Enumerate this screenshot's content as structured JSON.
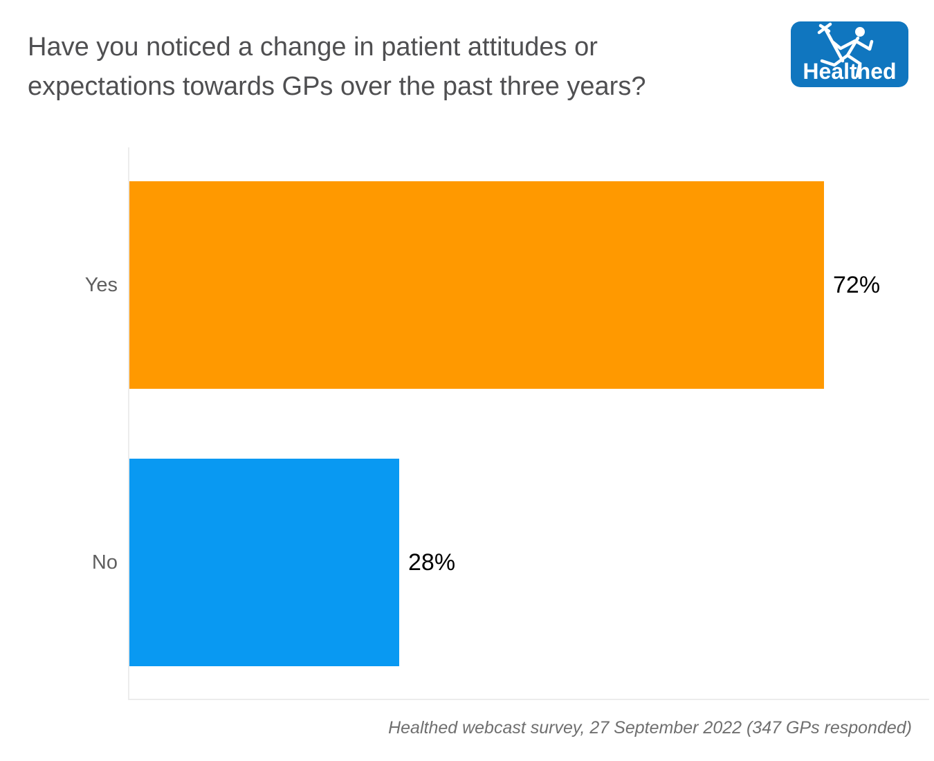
{
  "header": {
    "title_lines": [
      "Have you noticed a change in patient attitudes or",
      "expectations towards GPs over the past three years?"
    ],
    "logo": {
      "text": "Healthed",
      "icon": "hermes-runner-icon",
      "bg_color": "#1076BF",
      "fg_color": "#FFFFFF"
    }
  },
  "chart_data": {
    "type": "bar",
    "orientation": "horizontal",
    "title": "Have you noticed a change in patient attitudes or expectations towards GPs over the past three years?",
    "categories": [
      "Yes",
      "No"
    ],
    "values": [
      72,
      28
    ],
    "value_labels": [
      "72%",
      "28%"
    ],
    "value_unit": "%",
    "colors": [
      "#FF9900",
      "#0999F2"
    ],
    "xlabel": "",
    "ylabel": "",
    "xlim": [
      0,
      83
    ],
    "grid": false,
    "legend": false,
    "category_label_color": "#5f5f5f",
    "value_label_color": "#000000"
  },
  "footer": {
    "source_note": "Healthed webcast survey, 27 September 2022 (347 GPs responded)"
  }
}
